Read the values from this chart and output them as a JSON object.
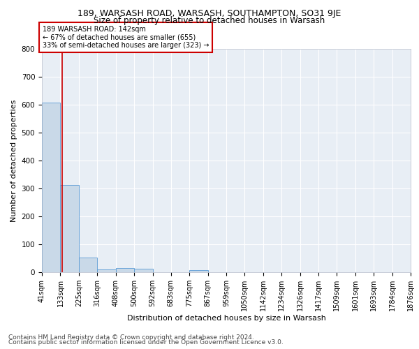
{
  "title1": "189, WARSASH ROAD, WARSASH, SOUTHAMPTON, SO31 9JE",
  "title2": "Size of property relative to detached houses in Warsash",
  "xlabel": "Distribution of detached houses by size in Warsash",
  "ylabel": "Number of detached properties",
  "footer1": "Contains HM Land Registry data © Crown copyright and database right 2024.",
  "footer2": "Contains public sector information licensed under the Open Government Licence v3.0.",
  "bin_edges": [
    41,
    133,
    225,
    316,
    408,
    500,
    592,
    683,
    775,
    867,
    959,
    1050,
    1142,
    1234,
    1326,
    1417,
    1509,
    1601,
    1693,
    1784,
    1876
  ],
  "bar_heights": [
    608,
    312,
    52,
    11,
    14,
    12,
    1,
    0,
    7,
    0,
    0,
    0,
    0,
    0,
    0,
    0,
    0,
    0,
    0,
    0
  ],
  "bar_color": "#c9d9e8",
  "bar_edge_color": "#5b9bd5",
  "property_size": 142,
  "vline_color": "#cc0000",
  "annotation_line1": "189 WARSASH ROAD: 142sqm",
  "annotation_line2": "← 67% of detached houses are smaller (655)",
  "annotation_line3": "33% of semi-detached houses are larger (323) →",
  "annotation_box_color": "#cc0000",
  "ylim": [
    0,
    800
  ],
  "yticks": [
    0,
    100,
    200,
    300,
    400,
    500,
    600,
    700,
    800
  ],
  "bg_color": "#e8eef5",
  "grid_color": "#ffffff",
  "title1_fontsize": 9,
  "title2_fontsize": 8.5,
  "xlabel_fontsize": 8,
  "ylabel_fontsize": 8,
  "tick_fontsize": 7,
  "footer_fontsize": 6.5
}
